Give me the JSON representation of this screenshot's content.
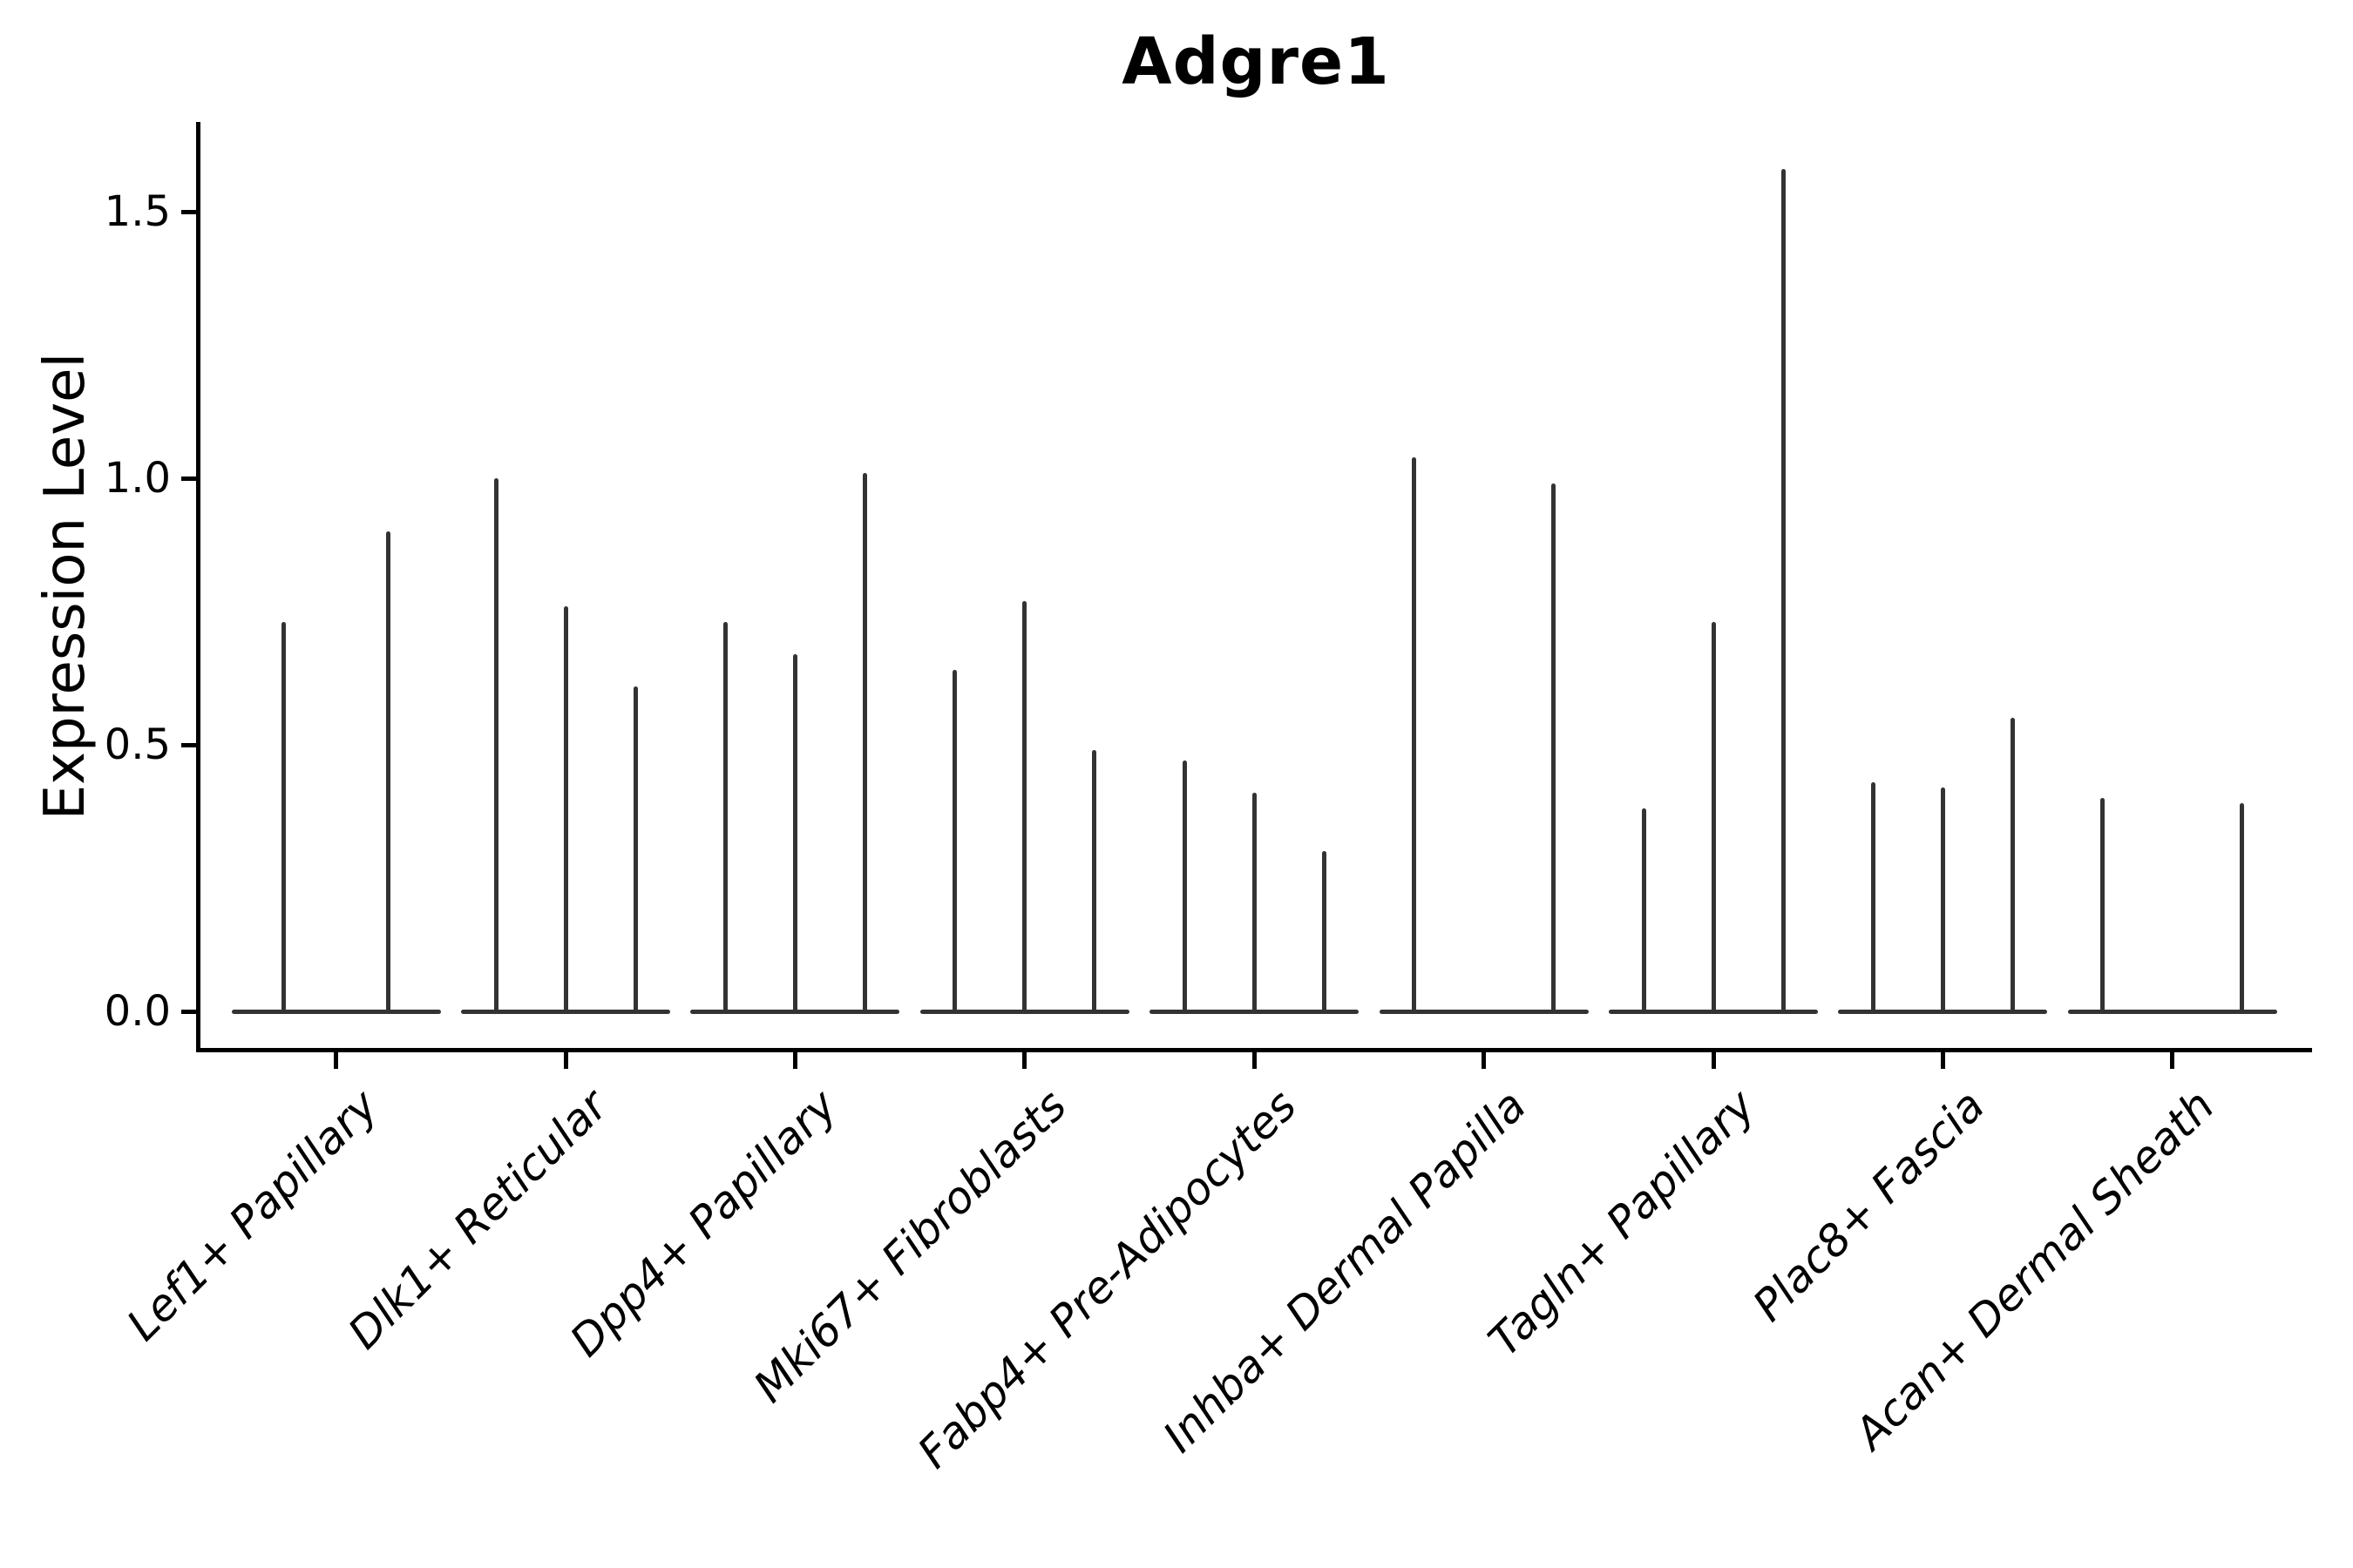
{
  "figure": {
    "title": "Adgre1",
    "ylabel": "Expression Level",
    "background_color": "#ffffff",
    "axis_color": "#000000",
    "violin_color": "#333333"
  },
  "chart_data": {
    "type": "violin",
    "title": "Adgre1",
    "xlabel": "",
    "ylabel": "Expression Level",
    "grid": false,
    "legend": "none",
    "ylim": [
      -0.08,
      1.67
    ],
    "yticks": [
      0.0,
      0.5,
      1.0,
      1.5
    ],
    "ytick_labels": [
      "0.0",
      "0.5",
      "1.0",
      "1.5"
    ],
    "categories": [
      "Lef1+ Papillary",
      "Dlk1+ Reticular",
      "Dpp4+ Papillary",
      "Mki67+ Fibroblasts",
      "Fabp4+ Pre-Adipocytes",
      "Inhba+ Dermal Papilla",
      "Tagln+ Papillary",
      "Plac8+ Fascia",
      "Acan+ Dermal Sheath"
    ],
    "description": "Violin plot of Adgre1 expression; violins are near-zero-width spikes rising from a flat base at 0. Each category holds 2-3 dodged violins; value is the top of each spike (max expression). Zero entries are fully flat violins.",
    "groups": [
      {
        "category": "Lef1+ Papillary",
        "violin_peaks": [
          0.73,
          0.9
        ]
      },
      {
        "category": "Dlk1+ Reticular",
        "violin_peaks": [
          1.0,
          0.76,
          0.61
        ]
      },
      {
        "category": "Dpp4+ Papillary",
        "violin_peaks": [
          0.73,
          0.67,
          1.01
        ]
      },
      {
        "category": "Mki67+ Fibroblasts",
        "violin_peaks": [
          0.64,
          0.77,
          0.49
        ]
      },
      {
        "category": "Fabp4+ Pre-Adipocytes",
        "violin_peaks": [
          0.47,
          0.41,
          0.3
        ]
      },
      {
        "category": "Inhba+ Dermal Papilla",
        "violin_peaks": [
          1.04,
          0.0,
          0.99
        ]
      },
      {
        "category": "Tagln+ Papillary",
        "violin_peaks": [
          0.38,
          0.73,
          1.58
        ]
      },
      {
        "category": "Plac8+ Fascia",
        "violin_peaks": [
          0.43,
          0.42,
          0.55
        ]
      },
      {
        "category": "Acan+ Dermal Sheath",
        "violin_peaks": [
          0.4,
          0.0,
          0.39
        ]
      }
    ]
  }
}
